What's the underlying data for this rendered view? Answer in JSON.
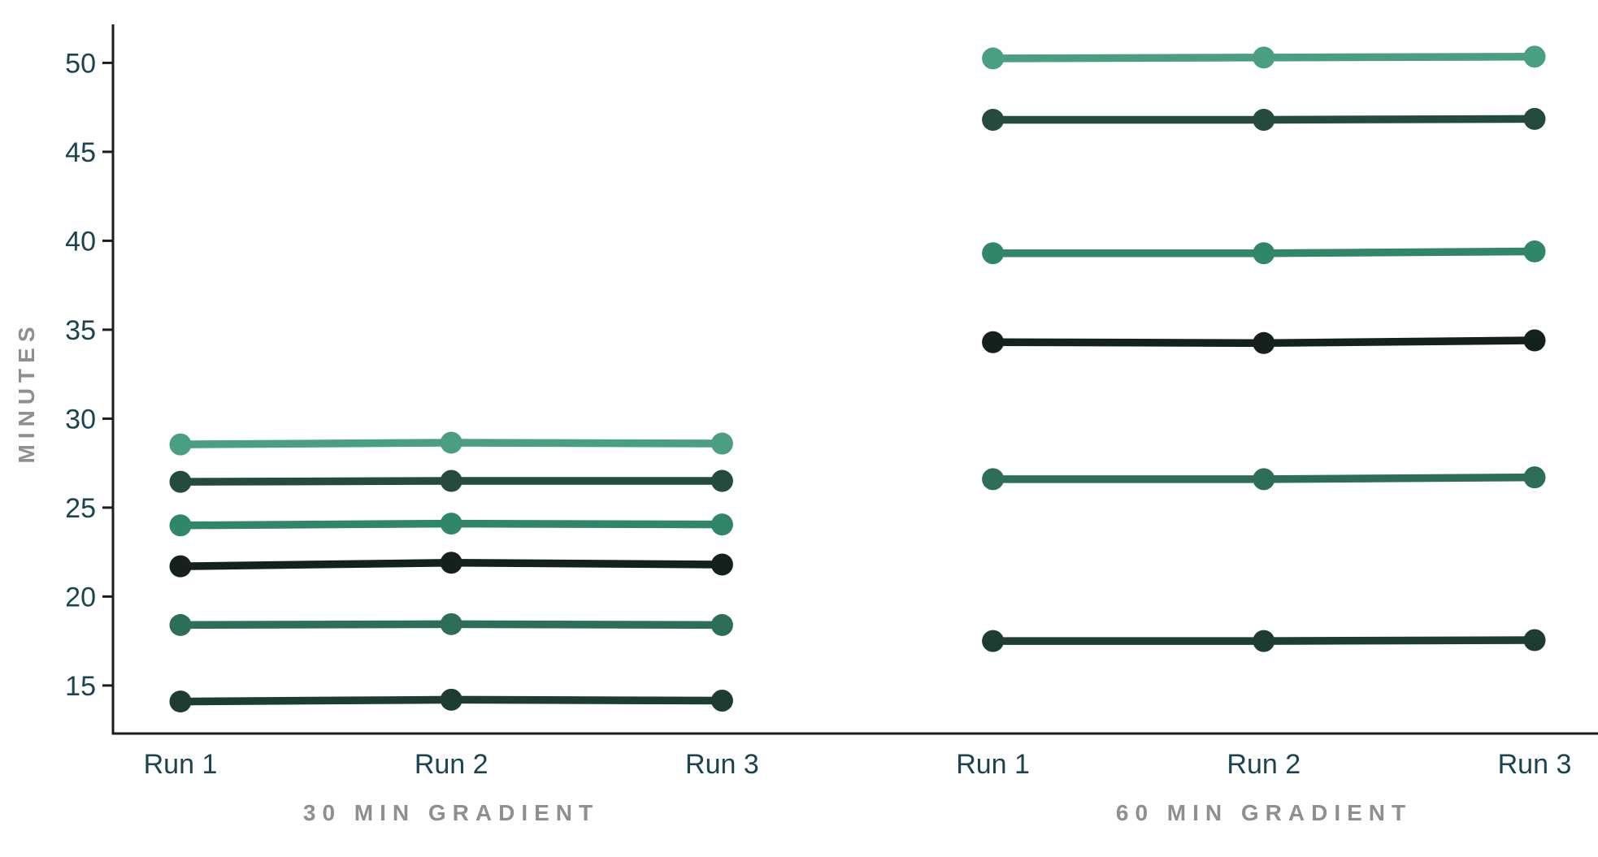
{
  "chart_data": {
    "type": "line",
    "title": "",
    "xlabel": "",
    "ylabel": "MINUTES",
    "ylim": [
      12.3,
      52.1
    ],
    "yticks": [
      15,
      20,
      25,
      30,
      35,
      40,
      45,
      50
    ],
    "legend": "none",
    "grid": false,
    "axis_color": "#1c1c1c",
    "tick_label_color": "#1b4450",
    "muted_label_color": "#8f8f8f",
    "groups": [
      {
        "label": "30 MIN GRADIENT",
        "categories": [
          "Run 1",
          "Run 2",
          "Run 3"
        ],
        "series": [
          {
            "id": "s1",
            "color": "#4a9e83",
            "values": [
              28.55,
              28.65,
              28.6
            ]
          },
          {
            "id": "s2",
            "color": "#254b3e",
            "values": [
              26.45,
              26.5,
              26.5
            ]
          },
          {
            "id": "s3",
            "color": "#2f866a",
            "values": [
              24.0,
              24.1,
              24.05
            ]
          },
          {
            "id": "s4",
            "color": "#15211b",
            "values": [
              21.7,
              21.9,
              21.8
            ]
          },
          {
            "id": "s5",
            "color": "#2d6e58",
            "values": [
              18.4,
              18.45,
              18.4
            ]
          },
          {
            "id": "s6",
            "color": "#1e3d31",
            "values": [
              14.1,
              14.2,
              14.15
            ]
          }
        ]
      },
      {
        "label": "60 MIN GRADIENT",
        "categories": [
          "Run 1",
          "Run 2",
          "Run 3"
        ],
        "series": [
          {
            "id": "s1",
            "color": "#4a9e83",
            "values": [
              50.25,
              50.3,
              50.35
            ]
          },
          {
            "id": "s2",
            "color": "#254b3e",
            "values": [
              46.8,
              46.8,
              46.85
            ]
          },
          {
            "id": "s3",
            "color": "#2f866a",
            "values": [
              39.3,
              39.3,
              39.4
            ]
          },
          {
            "id": "s4",
            "color": "#15211b",
            "values": [
              34.3,
              34.25,
              34.4
            ]
          },
          {
            "id": "s5",
            "color": "#2d6e58",
            "values": [
              26.6,
              26.6,
              26.7
            ]
          },
          {
            "id": "s6",
            "color": "#1e3d31",
            "values": [
              17.5,
              17.5,
              17.55
            ]
          }
        ]
      }
    ]
  }
}
